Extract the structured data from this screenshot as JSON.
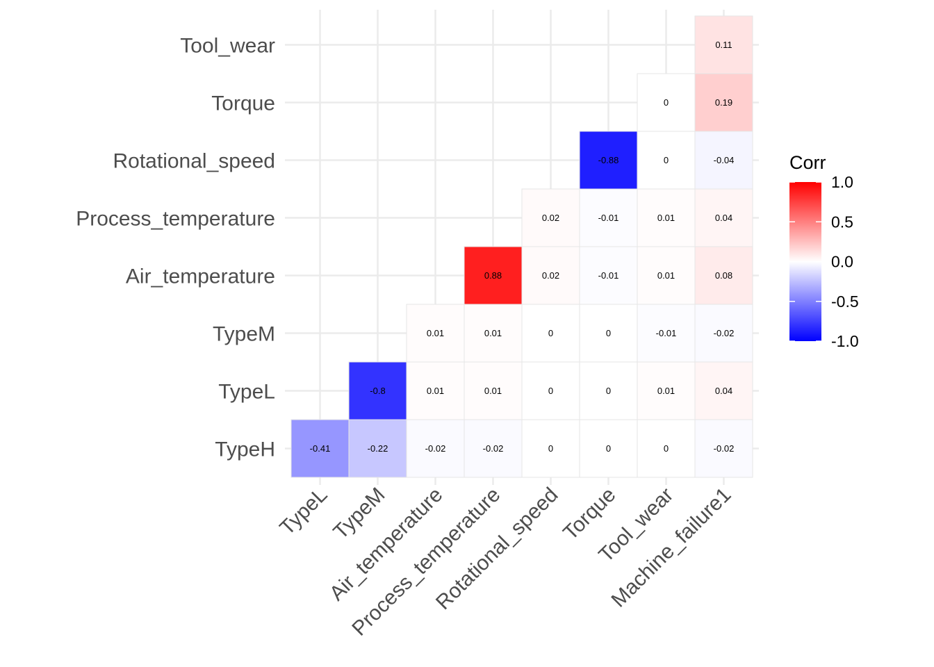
{
  "chart_data": {
    "type": "heatmap",
    "title": "",
    "xlabel": "",
    "ylabel": "",
    "x_categories": [
      "TypeL",
      "TypeM",
      "Air_temperature",
      "Process_temperature",
      "Rotational_speed",
      "Torque",
      "Tool_wear",
      "Machine_failure1"
    ],
    "y_categories": [
      "TypeH",
      "TypeL",
      "TypeM",
      "Air_temperature",
      "Process_temperature",
      "Rotational_speed",
      "Torque",
      "Tool_wear"
    ],
    "cells": [
      {
        "x": "TypeL",
        "y": "TypeH",
        "value": -0.41,
        "label": "-0.41"
      },
      {
        "x": "TypeM",
        "y": "TypeH",
        "value": -0.22,
        "label": "-0.22"
      },
      {
        "x": "Air_temperature",
        "y": "TypeH",
        "value": -0.02,
        "label": "-0.02"
      },
      {
        "x": "Process_temperature",
        "y": "TypeH",
        "value": -0.02,
        "label": "-0.02"
      },
      {
        "x": "Rotational_speed",
        "y": "TypeH",
        "value": 0,
        "label": "0"
      },
      {
        "x": "Torque",
        "y": "TypeH",
        "value": 0,
        "label": "0"
      },
      {
        "x": "Tool_wear",
        "y": "TypeH",
        "value": 0,
        "label": "0"
      },
      {
        "x": "Machine_failure1",
        "y": "TypeH",
        "value": -0.02,
        "label": "-0.02"
      },
      {
        "x": "TypeM",
        "y": "TypeL",
        "value": -0.8,
        "label": "-0.8"
      },
      {
        "x": "Air_temperature",
        "y": "TypeL",
        "value": 0.01,
        "label": "0.01"
      },
      {
        "x": "Process_temperature",
        "y": "TypeL",
        "value": 0.01,
        "label": "0.01"
      },
      {
        "x": "Rotational_speed",
        "y": "TypeL",
        "value": 0,
        "label": "0"
      },
      {
        "x": "Torque",
        "y": "TypeL",
        "value": 0,
        "label": "0"
      },
      {
        "x": "Tool_wear",
        "y": "TypeL",
        "value": 0.01,
        "label": "0.01"
      },
      {
        "x": "Machine_failure1",
        "y": "TypeL",
        "value": 0.04,
        "label": "0.04"
      },
      {
        "x": "Air_temperature",
        "y": "TypeM",
        "value": 0.01,
        "label": "0.01"
      },
      {
        "x": "Process_temperature",
        "y": "TypeM",
        "value": 0.01,
        "label": "0.01"
      },
      {
        "x": "Rotational_speed",
        "y": "TypeM",
        "value": 0,
        "label": "0"
      },
      {
        "x": "Torque",
        "y": "TypeM",
        "value": 0,
        "label": "0"
      },
      {
        "x": "Tool_wear",
        "y": "TypeM",
        "value": -0.01,
        "label": "-0.01"
      },
      {
        "x": "Machine_failure1",
        "y": "TypeM",
        "value": -0.02,
        "label": "-0.02"
      },
      {
        "x": "Process_temperature",
        "y": "Air_temperature",
        "value": 0.88,
        "label": "0.88"
      },
      {
        "x": "Rotational_speed",
        "y": "Air_temperature",
        "value": 0.02,
        "label": "0.02"
      },
      {
        "x": "Torque",
        "y": "Air_temperature",
        "value": -0.01,
        "label": "-0.01"
      },
      {
        "x": "Tool_wear",
        "y": "Air_temperature",
        "value": 0.01,
        "label": "0.01"
      },
      {
        "x": "Machine_failure1",
        "y": "Air_temperature",
        "value": 0.08,
        "label": "0.08"
      },
      {
        "x": "Rotational_speed",
        "y": "Process_temperature",
        "value": 0.02,
        "label": "0.02"
      },
      {
        "x": "Torque",
        "y": "Process_temperature",
        "value": -0.01,
        "label": "-0.01"
      },
      {
        "x": "Tool_wear",
        "y": "Process_temperature",
        "value": 0.01,
        "label": "0.01"
      },
      {
        "x": "Machine_failure1",
        "y": "Process_temperature",
        "value": 0.04,
        "label": "0.04"
      },
      {
        "x": "Torque",
        "y": "Rotational_speed",
        "value": -0.88,
        "label": "-0.88"
      },
      {
        "x": "Tool_wear",
        "y": "Rotational_speed",
        "value": 0,
        "label": "0"
      },
      {
        "x": "Machine_failure1",
        "y": "Rotational_speed",
        "value": -0.04,
        "label": "-0.04"
      },
      {
        "x": "Tool_wear",
        "y": "Torque",
        "value": 0,
        "label": "0"
      },
      {
        "x": "Machine_failure1",
        "y": "Torque",
        "value": 0.19,
        "label": "0.19"
      },
      {
        "x": "Machine_failure1",
        "y": "Tool_wear",
        "value": 0.11,
        "label": "0.11"
      }
    ],
    "legend": {
      "title": "Corr",
      "placement": "right",
      "ticks": [
        1.0,
        0.5,
        0.0,
        -0.5,
        -1.0
      ],
      "tick_labels": [
        "1.0",
        "0.5",
        "0.0",
        "-0.5",
        "-1.0"
      ],
      "range": [
        -1,
        1
      ],
      "colors": {
        "low": "#0000ff",
        "mid": "#ffffff",
        "high": "#ff0000"
      }
    },
    "grid": true,
    "x_tick_rotation": "45deg"
  }
}
